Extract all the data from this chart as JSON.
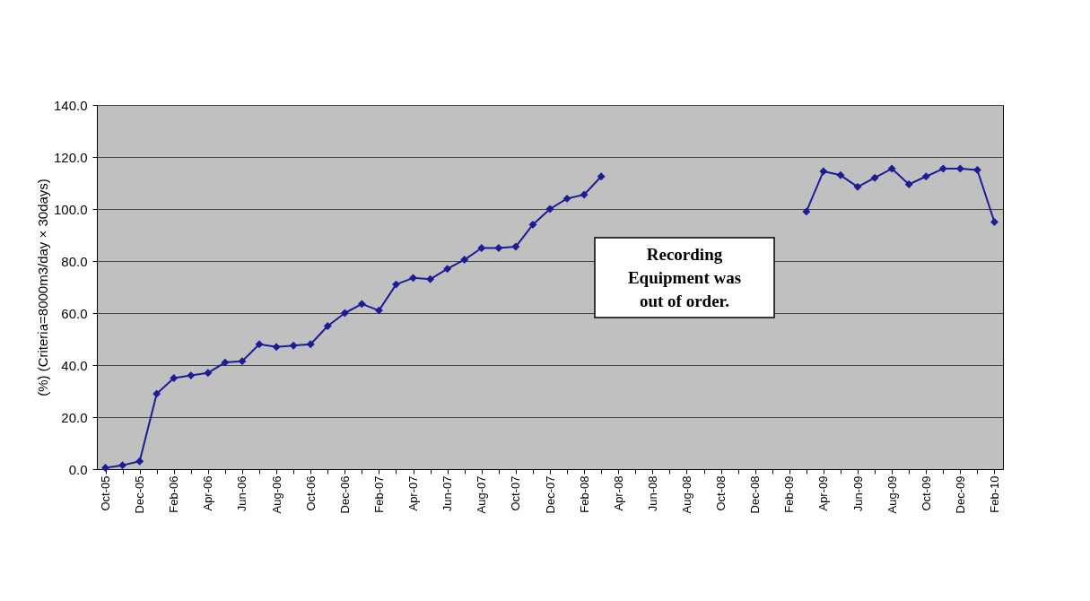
{
  "chart_data": {
    "type": "line",
    "ylabel": "(%) (Criteria=8000m3/day × 30days)",
    "categories": [
      "Oct-05",
      null,
      "Dec-05",
      null,
      "Feb-06",
      null,
      "Apr-06",
      null,
      "Jun-06",
      null,
      "Aug-06",
      null,
      "Oct-06",
      null,
      "Dec-06",
      null,
      "Feb-07",
      null,
      "Apr-07",
      null,
      "Jun-07",
      null,
      "Aug-07",
      null,
      "Oct-07",
      null,
      "Dec-07",
      null,
      "Feb-08",
      null,
      "Apr-08",
      null,
      "Jun-08",
      null,
      "Aug-08",
      null,
      "Oct-08",
      null,
      "Dec-08",
      null,
      "Feb-09",
      null,
      "Apr-09",
      null,
      "Jun-09",
      null,
      "Aug-09",
      null,
      "Oct-09",
      null,
      "Dec-09",
      null,
      "Feb-10"
    ],
    "series": [
      {
        "color": "#1c1c96",
        "values": [
          0.5,
          1.5,
          3,
          29,
          35,
          36,
          37,
          41,
          41.5,
          48,
          47,
          47.5,
          48,
          55,
          60,
          63.5,
          61,
          71,
          73.5,
          73,
          77,
          80.5,
          85,
          85,
          85.5,
          94,
          100,
          104,
          105.5,
          112.5,
          null,
          null,
          null,
          null,
          null,
          null,
          null,
          null,
          null,
          null,
          null,
          99,
          114.5,
          113,
          108.5,
          112,
          115.5,
          109.5,
          112.5,
          115.5,
          115.5,
          115,
          95
        ]
      }
    ],
    "ylim": [
      0,
      140
    ],
    "yticks": [
      {
        "value": 0,
        "label": "0.0"
      },
      {
        "value": 20,
        "label": "20.0"
      },
      {
        "value": 40,
        "label": "40.0"
      },
      {
        "value": 60,
        "label": "60.0"
      },
      {
        "value": 80,
        "label": "80.0"
      },
      {
        "value": 100,
        "label": "100.0"
      },
      {
        "value": 120,
        "label": "120.0"
      },
      {
        "value": 140,
        "label": "140.0"
      }
    ],
    "grid": "y",
    "marker": "diamond",
    "line_style": "solid",
    "annotations": [
      "Recording Equipment was out of order."
    ]
  }
}
